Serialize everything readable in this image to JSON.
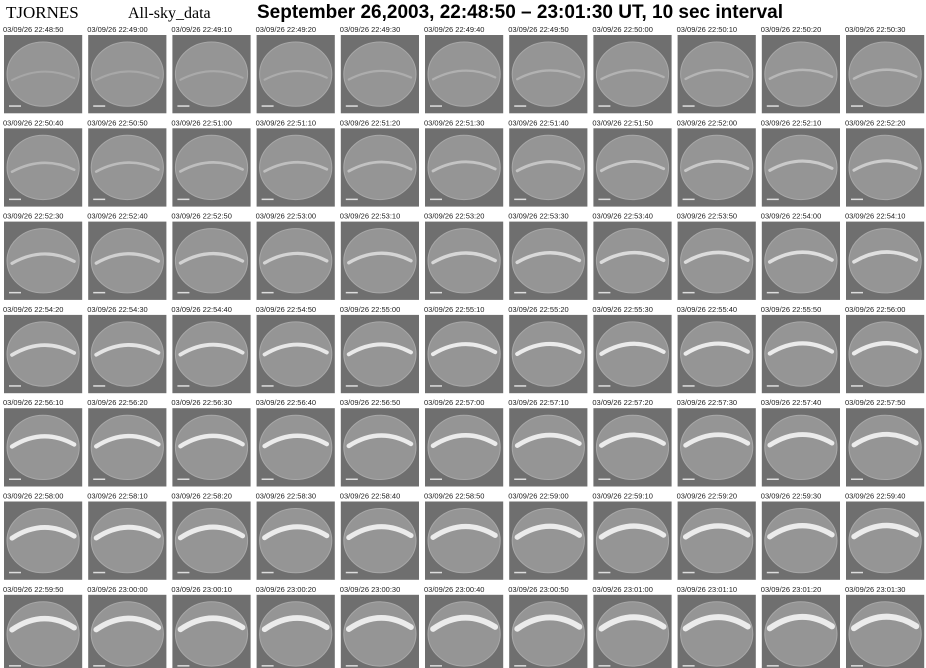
{
  "header": {
    "station": "TJORNES",
    "dataset": "All-sky_data",
    "title": "September 26,2003, 22:48:50 – 23:01:30 UT, 10 sec interval"
  },
  "rows": [
    [
      "03/09/26 22:48:50",
      "03/09/26 22:49:00",
      "03/09/26 22:49:10",
      "03/09/26 22:49:20",
      "03/09/26 22:49:30",
      "03/09/26 22:49:40",
      "03/09/26 22:49:50",
      "03/09/26 22:50:00",
      "03/09/26 22:50:10",
      "03/09/26 22:50:20",
      "03/09/26 22:50:30"
    ],
    [
      "03/09/26 22:50:40",
      "03/09/26 22:50:50",
      "03/09/26 22:51:00",
      "03/09/26 22:51:10",
      "03/09/26 22:51:20",
      "03/09/26 22:51:30",
      "03/09/26 22:51:40",
      "03/09/26 22:51:50",
      "03/09/26 22:52:00",
      "03/09/26 22:52:10",
      "03/09/26 22:52:20"
    ],
    [
      "03/09/26 22:52:30",
      "03/09/26 22:52:40",
      "03/09/26 22:52:50",
      "03/09/26 22:53:00",
      "03/09/26 22:53:10",
      "03/09/26 22:53:20",
      "03/09/26 22:53:30",
      "03/09/26 22:53:40",
      "03/09/26 22:53:50",
      "03/09/26 22:54:00",
      "03/09/26 22:54:10"
    ],
    [
      "03/09/26 22:54:20",
      "03/09/26 22:54:30",
      "03/09/26 22:54:40",
      "03/09/26 22:54:50",
      "03/09/26 22:55:00",
      "03/09/26 22:55:10",
      "03/09/26 22:55:20",
      "03/09/26 22:55:30",
      "03/09/26 22:55:40",
      "03/09/26 22:55:50",
      "03/09/26 22:56:00"
    ],
    [
      "03/09/26 22:56:10",
      "03/09/26 22:56:20",
      "03/09/26 22:56:30",
      "03/09/26 22:56:40",
      "03/09/26 22:56:50",
      "03/09/26 22:57:00",
      "03/09/26 22:57:10",
      "03/09/26 22:57:20",
      "03/09/26 22:57:30",
      "03/09/26 22:57:40",
      "03/09/26 22:57:50"
    ],
    [
      "03/09/26 22:58:00",
      "03/09/26 22:58:10",
      "03/09/26 22:58:20",
      "03/09/26 22:58:30",
      "03/09/26 22:58:40",
      "03/09/26 22:58:50",
      "03/09/26 22:59:00",
      "03/09/26 22:59:10",
      "03/09/26 22:59:20",
      "03/09/26 22:59:30",
      "03/09/26 22:59:40"
    ],
    [
      "03/09/26 22:59:50",
      "03/09/26 23:00:00",
      "03/09/26 23:00:10",
      "03/09/26 23:00:20",
      "03/09/26 23:00:30",
      "03/09/26 23:00:40",
      "03/09/26 23:00:50",
      "03/09/26 23:01:00",
      "03/09/26 23:01:10",
      "03/09/26 23:01:20",
      "03/09/26 23:01:30"
    ]
  ]
}
